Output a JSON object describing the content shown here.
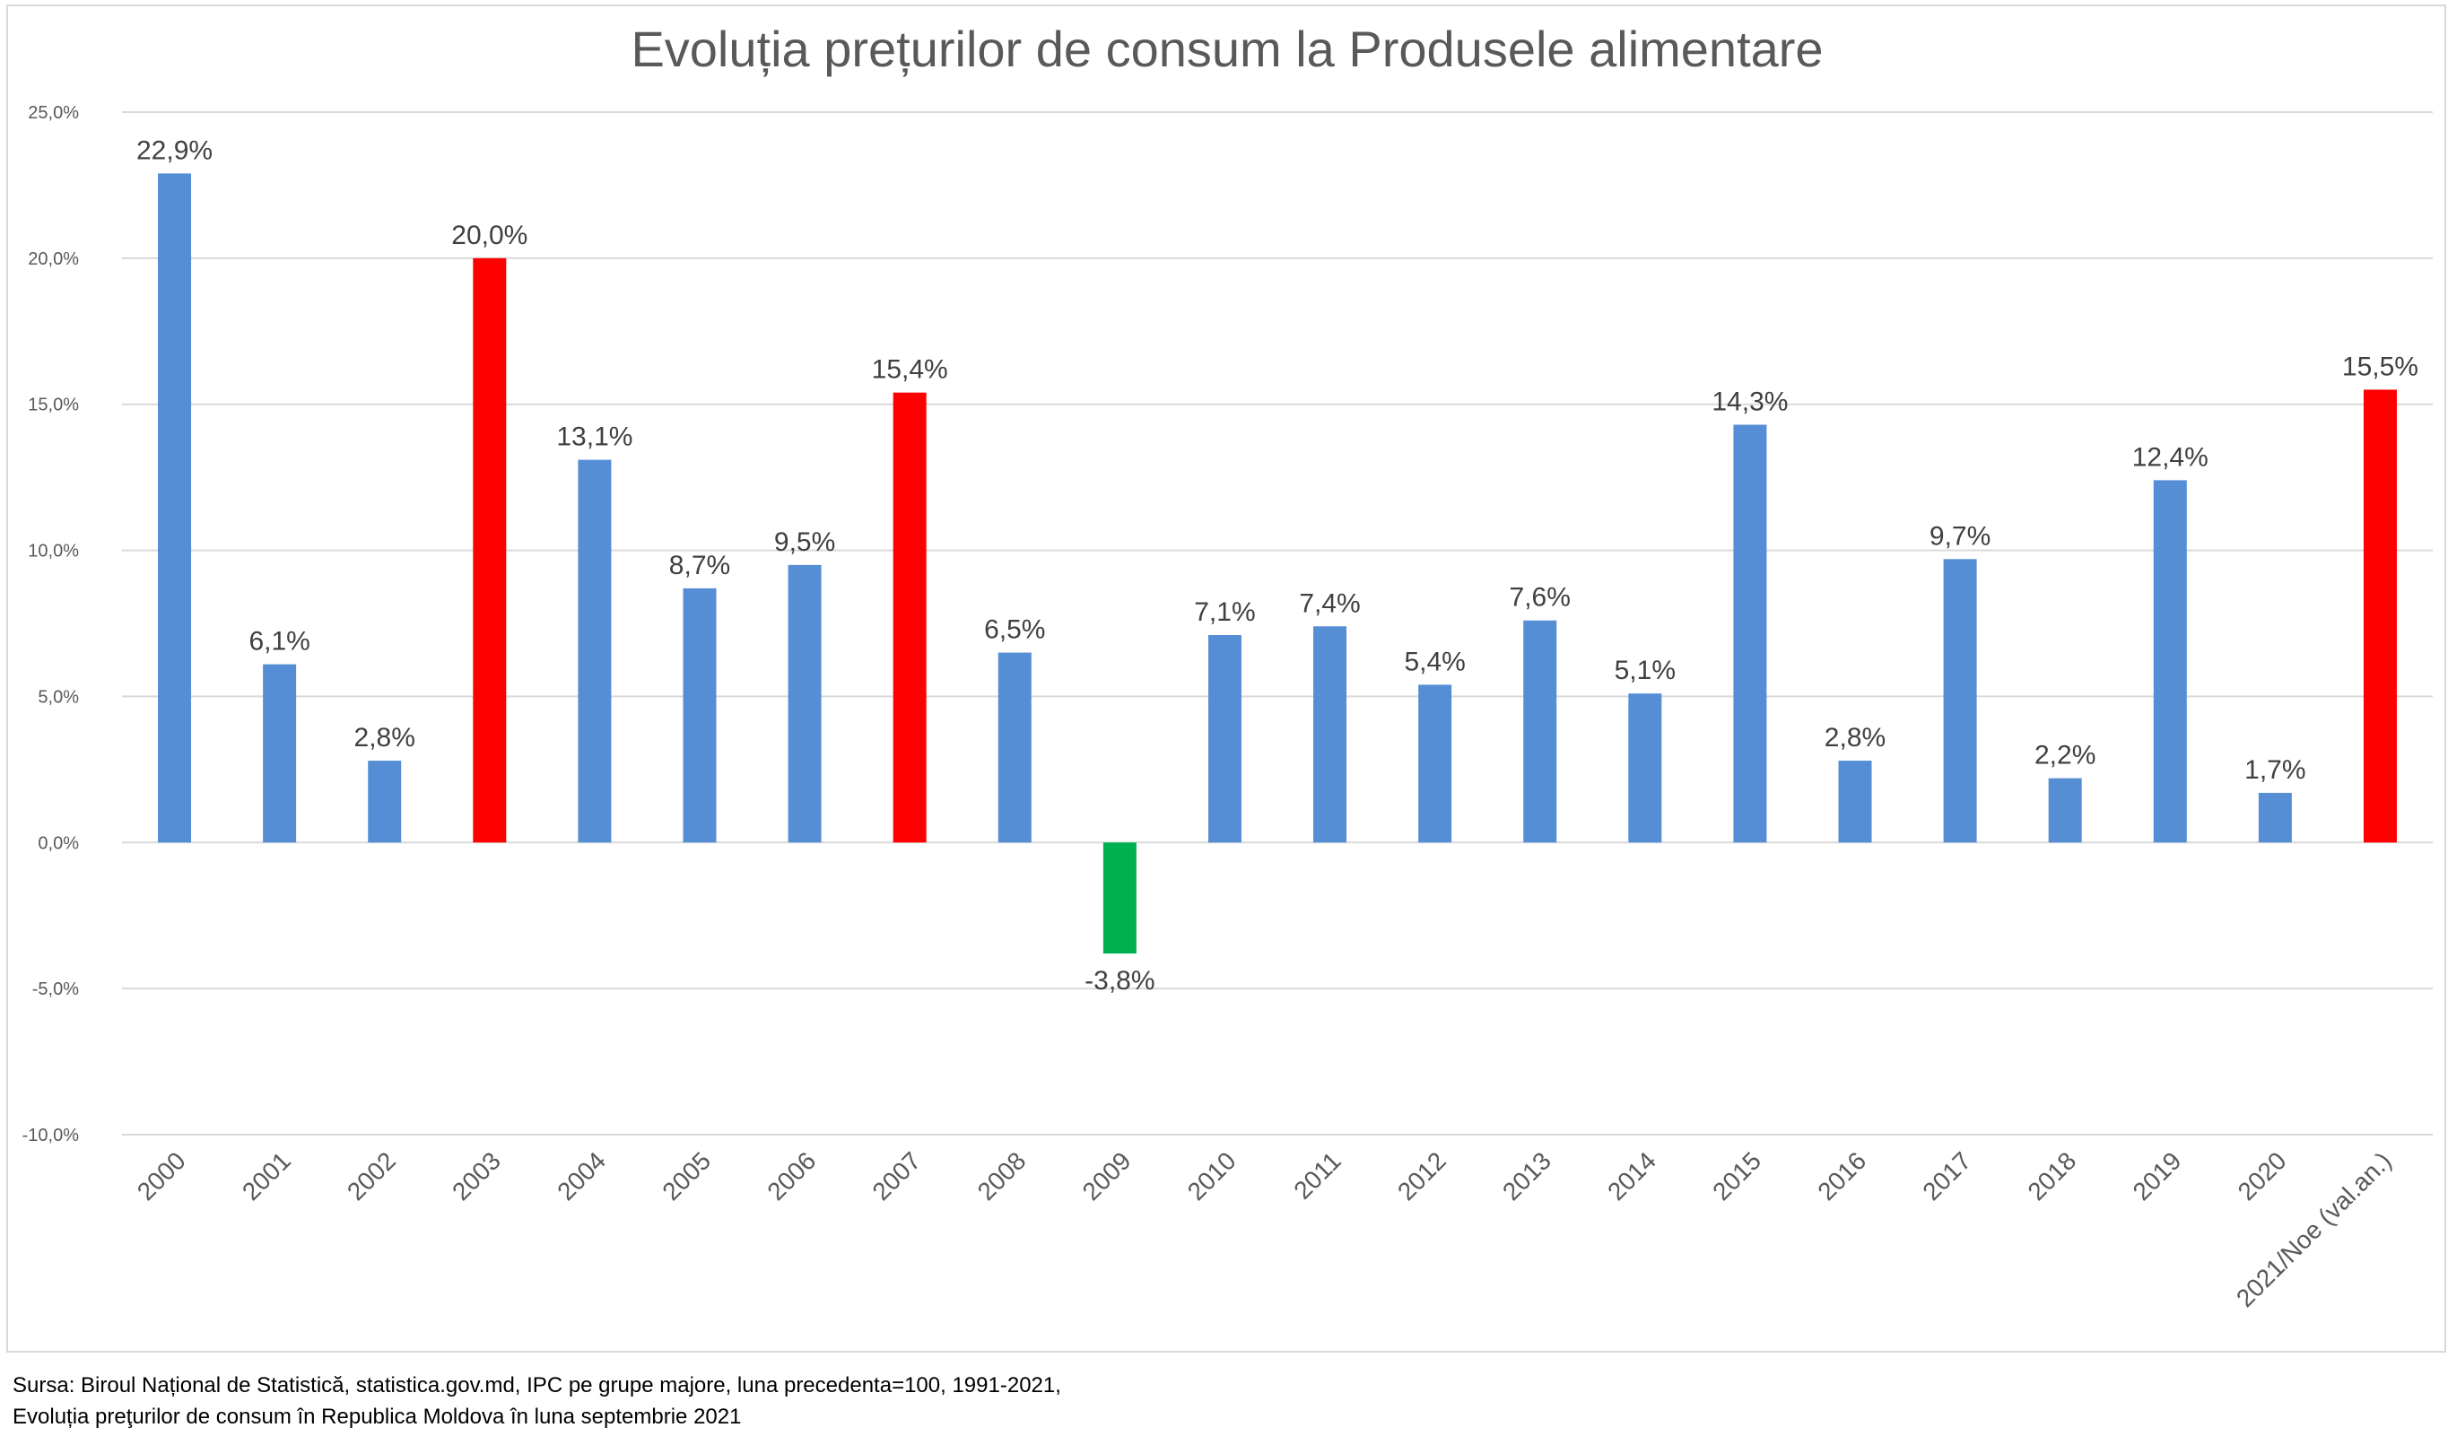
{
  "chart_data": {
    "type": "bar",
    "title": "Evoluția prețurilor de consum la Produsele alimentare",
    "xlabel": "",
    "ylabel": "",
    "ylim": [
      -10,
      25
    ],
    "yticks": [
      25,
      20,
      15,
      10,
      5,
      0,
      -5,
      -10
    ],
    "ytick_labels": [
      "25,0%",
      "20,0%",
      "15,0%",
      "10,0%",
      "5,0%",
      "0,0%",
      "-5,0%",
      "-10,0%"
    ],
    "grid": true,
    "legend": "none",
    "categories": [
      "2000",
      "2001",
      "2002",
      "2003",
      "2004",
      "2005",
      "2006",
      "2007",
      "2008",
      "2009",
      "2010",
      "2011",
      "2012",
      "2013",
      "2014",
      "2015",
      "2016",
      "2017",
      "2018",
      "2019",
      "2020",
      "2021/Noe (val.an.)"
    ],
    "values": [
      22.9,
      6.1,
      2.8,
      20.0,
      13.1,
      8.7,
      9.5,
      15.4,
      6.5,
      -3.8,
      7.1,
      7.4,
      5.4,
      7.6,
      5.1,
      14.3,
      2.8,
      9.7,
      2.2,
      12.4,
      1.7,
      15.5
    ],
    "value_labels": [
      "22,9%",
      "6,1%",
      "2,8%",
      "20,0%",
      "13,1%",
      "8,7%",
      "9,5%",
      "15,4%",
      "6,5%",
      "-3,8%",
      "7,1%",
      "7,4%",
      "5,4%",
      "7,6%",
      "5,1%",
      "14,3%",
      "2,8%",
      "9,7%",
      "2,2%",
      "12,4%",
      "1,7%",
      "15,5%"
    ],
    "colors": [
      "#558ed5",
      "#558ed5",
      "#558ed5",
      "#ff0000",
      "#558ed5",
      "#558ed5",
      "#558ed5",
      "#ff0000",
      "#558ed5",
      "#00b050",
      "#558ed5",
      "#558ed5",
      "#558ed5",
      "#558ed5",
      "#558ed5",
      "#558ed5",
      "#558ed5",
      "#558ed5",
      "#558ed5",
      "#558ed5",
      "#558ed5",
      "#ff0000"
    ]
  },
  "source": {
    "line1": "Sursa: Biroul Național de Statistică, statistica.gov.md,  IPC pe grupe majore, luna precedenta=100, 1991-2021,",
    "line2": "Evoluția preţurilor de consum în Republica Moldova în luna septembrie 2021"
  }
}
